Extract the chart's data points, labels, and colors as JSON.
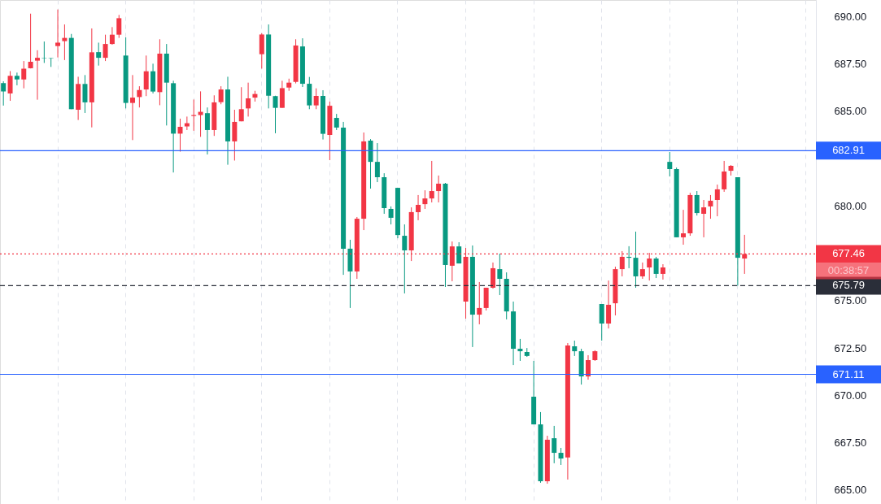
{
  "chart_data": {
    "type": "candlestick",
    "categories": [
      null,
      null,
      null,
      null,
      null,
      null,
      null,
      null,
      null,
      null,
      null,
      null,
      null,
      null,
      null,
      null,
      null,
      null,
      null,
      null,
      null,
      null,
      null,
      null,
      null,
      null,
      null,
      null,
      null,
      null,
      null,
      null,
      null,
      null,
      null,
      null,
      null,
      null,
      null,
      null,
      null,
      null,
      null,
      null,
      null,
      null,
      null,
      null,
      null,
      null,
      null,
      null,
      null,
      null,
      null,
      null,
      null,
      null,
      null,
      null,
      null,
      null,
      null,
      null,
      null,
      null,
      null,
      null,
      null,
      null,
      null,
      null,
      null,
      null,
      null,
      null,
      null,
      null,
      null,
      null,
      null,
      null,
      null,
      null,
      null,
      null,
      null,
      null,
      null,
      null,
      null,
      null,
      null,
      null,
      null,
      null,
      null,
      null,
      null,
      null,
      null,
      null,
      null,
      null,
      null,
      null,
      null,
      null,
      null,
      null,
      null,
      null,
      null,
      null,
      null,
      null,
      null,
      null,
      null,
      null
    ],
    "ohlc": [
      [
        686.47,
        686.57,
        685.29,
        686.03
      ],
      [
        685.93,
        687.11,
        685.54,
        686.86
      ],
      [
        686.86,
        687.03,
        686.36,
        686.67
      ],
      [
        686.67,
        687.64,
        686.2,
        687.24
      ],
      [
        687.26,
        690.14,
        687.25,
        687.6
      ],
      [
        687.66,
        688.21,
        685.6,
        687.81
      ],
      [
        687.81,
        688.67,
        687.54,
        687.79
      ],
      [
        687.79,
        687.8,
        687.33,
        687.77
      ],
      [
        688.43,
        690.36,
        687.83,
        688.61
      ],
      [
        688.69,
        689.57,
        687.69,
        688.86
      ],
      [
        688.86,
        689.07,
        685.1,
        685.1
      ],
      [
        685.07,
        686.81,
        684.53,
        686.43
      ],
      [
        686.43,
        686.9,
        684.9,
        685.46
      ],
      [
        685.46,
        689.36,
        684.14,
        688.1
      ],
      [
        688.11,
        688.61,
        687.4,
        687.81
      ],
      [
        687.81,
        689.03,
        687.64,
        688.54
      ],
      [
        688.54,
        689.43,
        688.5,
        689.03
      ],
      [
        689.03,
        690.07,
        688.86,
        689.9
      ],
      [
        687.93,
        688.89,
        685.14,
        685.43
      ],
      [
        685.43,
        686.9,
        683.47,
        685.71
      ],
      [
        685.74,
        686.31,
        685.19,
        686.11
      ],
      [
        686.14,
        687.93,
        685.79,
        687.1
      ],
      [
        687.1,
        687.5,
        685.93,
        686.03
      ],
      [
        686.0,
        688.79,
        685.31,
        688.03
      ],
      [
        688.03,
        688.54,
        684.24,
        686.5
      ],
      [
        686.47,
        686.6,
        681.76,
        683.81
      ],
      [
        683.81,
        684.6,
        682.86,
        684.17
      ],
      [
        684.19,
        684.71,
        684.0,
        684.36
      ],
      [
        684.74,
        685.61,
        683.96,
        684.79
      ],
      [
        684.79,
        686.04,
        683.64,
        684.96
      ],
      [
        684.89,
        685.19,
        682.71,
        684.0
      ],
      [
        684.0,
        685.83,
        683.69,
        685.46
      ],
      [
        685.47,
        686.31,
        685.36,
        686.14
      ],
      [
        686.14,
        686.81,
        682.17,
        683.4
      ],
      [
        683.4,
        685.07,
        682.39,
        684.43
      ],
      [
        684.46,
        686.26,
        684.46,
        685.1
      ],
      [
        685.14,
        686.5,
        684.71,
        685.67
      ],
      [
        685.71,
        686.07,
        685.5,
        685.9
      ],
      [
        688.0,
        689.11,
        687.24,
        689.04
      ],
      [
        689.04,
        689.57,
        685.14,
        685.81
      ],
      [
        685.79,
        685.81,
        683.83,
        685.17
      ],
      [
        685.17,
        686.6,
        685.17,
        686.21
      ],
      [
        686.24,
        686.71,
        686.07,
        686.5
      ],
      [
        686.54,
        688.79,
        686.46,
        688.46
      ],
      [
        688.41,
        688.84,
        686.27,
        686.44
      ],
      [
        686.44,
        686.8,
        685.1,
        685.3
      ],
      [
        685.3,
        686.2,
        685.1,
        685.8
      ],
      [
        685.8,
        686.1,
        683.5,
        683.8
      ],
      [
        683.74,
        685.5,
        682.41,
        685.28
      ],
      [
        684.64,
        684.85,
        684.0,
        684.13
      ],
      [
        684.13,
        684.43,
        676.36,
        677.74
      ],
      [
        677.74,
        678.21,
        674.61,
        676.54
      ],
      [
        676.54,
        679.41,
        676.15,
        679.32
      ],
      [
        679.32,
        683.87,
        678.72,
        683.4
      ],
      [
        683.44,
        683.52,
        680.91,
        682.32
      ],
      [
        682.32,
        683.31,
        681.25,
        681.51
      ],
      [
        681.51,
        681.72,
        679.58,
        679.88
      ],
      [
        679.84,
        679.97,
        679.02,
        679.37
      ],
      [
        680.95,
        680.95,
        678.29,
        678.46
      ],
      [
        678.42,
        679.02,
        675.38,
        677.65
      ],
      [
        677.65,
        679.92,
        677.09,
        679.67
      ],
      [
        679.67,
        680.57,
        679.24,
        680.05
      ],
      [
        680.09,
        680.82,
        679.84,
        680.39
      ],
      [
        680.39,
        682.37,
        680.18,
        680.78
      ],
      [
        680.78,
        681.6,
        680.18,
        681.17
      ],
      [
        681.17,
        681.21,
        675.72,
        676.88
      ],
      [
        676.84,
        678.12,
        676.02,
        677.86
      ],
      [
        677.86,
        678.08,
        676.96,
        676.96
      ],
      [
        674.95,
        677.78,
        674.05,
        677.31
      ],
      [
        677.31,
        677.91,
        672.55,
        674.26
      ],
      [
        674.26,
        675.98,
        673.75,
        674.61
      ],
      [
        674.61,
        675.68,
        674.48,
        675.68
      ],
      [
        675.68,
        677.01,
        675.63,
        676.71
      ],
      [
        676.66,
        677.48,
        675.29,
        676.15
      ],
      [
        676.15,
        676.49,
        674.01,
        674.43
      ],
      [
        674.43,
        674.95,
        671.6,
        672.46
      ],
      [
        672.46,
        672.98,
        671.82,
        672.33
      ],
      [
        672.29,
        672.5,
        672.03,
        672.08
      ],
      [
        669.93,
        671.82,
        668.47,
        668.47
      ],
      [
        668.47,
        669.12,
        665.39,
        665.47
      ],
      [
        665.47,
        667.87,
        665.34,
        667.66
      ],
      [
        667.74,
        668.39,
        666.42,
        666.97
      ],
      [
        666.97,
        667.23,
        666.33,
        666.67
      ],
      [
        666.72,
        672.76,
        665.56,
        672.63
      ],
      [
        672.59,
        672.89,
        672.08,
        672.33
      ],
      [
        672.33,
        672.46,
        670.57,
        671.0
      ],
      [
        671.0,
        672.12,
        670.83,
        671.86
      ],
      [
        671.86,
        672.38,
        671.82,
        672.33
      ],
      [
        674.82,
        674.82,
        672.89,
        673.79
      ],
      [
        673.79,
        676.06,
        673.53,
        674.78
      ],
      [
        674.86,
        676.79,
        674.22,
        676.66
      ],
      [
        676.66,
        677.61,
        676.28,
        677.31
      ],
      [
        677.31,
        677.87,
        676.71,
        677.26
      ],
      [
        677.26,
        678.64,
        675.68,
        676.28
      ],
      [
        676.28,
        677.01,
        676.15,
        676.66
      ],
      [
        676.75,
        677.52,
        676.06,
        677.22
      ],
      [
        677.22,
        677.31,
        676.19,
        676.41
      ],
      [
        676.41,
        676.92,
        676.11,
        676.75
      ],
      [
        682.32,
        682.84,
        681.55,
        681.94
      ],
      [
        681.94,
        682.02,
        678.34,
        678.34
      ],
      [
        678.34,
        679.79,
        677.95,
        678.55
      ],
      [
        678.55,
        680.69,
        678.42,
        680.57
      ],
      [
        680.57,
        680.78,
        679.49,
        679.62
      ],
      [
        679.58,
        680.31,
        678.34,
        679.92
      ],
      [
        679.97,
        680.57,
        679.32,
        680.27
      ],
      [
        680.31,
        681.12,
        679.45,
        680.87
      ],
      [
        680.87,
        682.37,
        680.74,
        681.81
      ],
      [
        681.85,
        682.15,
        681.6,
        682.11
      ],
      [
        681.51,
        681.51,
        675.79,
        677.26
      ],
      [
        677.22,
        678.47,
        676.41,
        677.46
      ],
      null,
      null,
      null,
      null,
      null,
      null,
      null,
      null,
      null,
      null
    ],
    "colors": [
      "#089981",
      "#f23645",
      "#089981",
      "#f23645",
      "#f23645",
      "#f23645",
      "#089981",
      "#089981",
      "#f23645",
      "#f23645",
      "#089981",
      "#f23645",
      "#089981",
      "#f23645",
      "#089981",
      "#f23645",
      "#f23645",
      "#f23645",
      "#089981",
      "#f23645",
      "#f23645",
      "#f23645",
      "#089981",
      "#f23645",
      "#089981",
      "#089981",
      "#f23645",
      "#f23645",
      "#f23645",
      "#f23645",
      "#089981",
      "#f23645",
      "#f23645",
      "#089981",
      "#f23645",
      "#f23645",
      "#f23645",
      "#f23645",
      "#f23645",
      "#089981",
      "#089981",
      "#f23645",
      "#f23645",
      "#f23645",
      "#089981",
      "#089981",
      "#f23645",
      "#089981",
      "#f23645",
      "#089981",
      "#089981",
      "#089981",
      "#f23645",
      "#f23645",
      "#089981",
      "#089981",
      "#089981",
      "#089981",
      "#089981",
      "#089981",
      "#f23645",
      "#f23645",
      "#f23645",
      "#f23645",
      "#f23645",
      "#089981",
      "#f23645",
      "#089981",
      "#f23645",
      "#089981",
      "#f23645",
      "#f23645",
      "#f23645",
      "#089981",
      "#089981",
      "#089981",
      "#089981",
      "#089981",
      "#089981",
      "#089981",
      "#f23645",
      "#089981",
      "#089981",
      "#f23645",
      "#089981",
      "#089981",
      "#f23645",
      "#f23645",
      "#089981",
      "#f23645",
      "#f23645",
      "#f23645",
      "#089981",
      "#089981",
      "#f23645",
      "#f23645",
      "#089981",
      "#f23645",
      "#089981",
      "#089981",
      "#f23645",
      "#f23645",
      "#089981",
      "#f23645",
      "#f23645",
      "#f23645",
      "#f23645",
      "#f23645",
      "#089981",
      "#f23645",
      null,
      null,
      null,
      null,
      null,
      null,
      null,
      null,
      null,
      null
    ],
    "ylim": [
      664.27,
      690.86
    ],
    "yticks": [
      {
        "value": 665,
        "label": "665.00"
      },
      {
        "value": 667.5,
        "label": "667.50"
      },
      {
        "value": 670,
        "label": "670.00"
      },
      {
        "value": 672.5,
        "label": "672.50"
      },
      {
        "value": 675,
        "label": "675.00"
      },
      {
        "value": 680,
        "label": "680.00"
      },
      {
        "value": 685,
        "label": "685.00"
      },
      {
        "value": 687.5,
        "label": "687.50"
      },
      {
        "value": 690,
        "label": "690.00"
      }
    ],
    "grid": "x",
    "tick_labels": "y",
    "ref_lines": [
      {
        "axis": "y",
        "value": 682.91,
        "label": "682.91",
        "color": "#2962ff",
        "line_style": "solid"
      },
      {
        "axis": "y",
        "value": 671.11,
        "label": "671.11",
        "color": "#2962ff",
        "line_style": "solid"
      },
      {
        "axis": "y",
        "value": 677.46,
        "label": "677.46",
        "color": "#f23645",
        "line_style": "dotted"
      },
      {
        "axis": "y",
        "value": 675.79,
        "label": "675.79",
        "color": "#2a2e39",
        "line_style": "dashed"
      }
    ],
    "annotations": [
      "00:38:57"
    ]
  }
}
